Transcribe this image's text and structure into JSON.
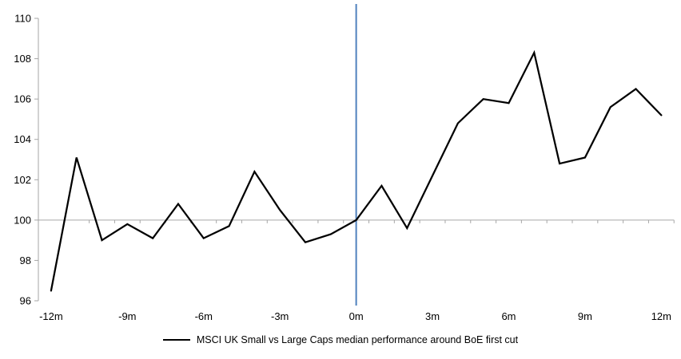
{
  "chart_data": {
    "type": "line",
    "title": "",
    "xlabel": "",
    "ylabel": "",
    "x": [
      -12,
      -11,
      -10,
      -9,
      -8,
      -7,
      -6,
      -5,
      -4,
      -3,
      -2,
      -1,
      0,
      1,
      2,
      3,
      4,
      5,
      6,
      7,
      8,
      9,
      10,
      11,
      12
    ],
    "x_ticks": [
      -12,
      -9,
      -6,
      -3,
      0,
      3,
      6,
      9,
      12
    ],
    "x_tick_labels": [
      "-12m",
      "-9m",
      "-6m",
      "-3m",
      "0m",
      "3m",
      "6m",
      "9m",
      "12m"
    ],
    "series": [
      {
        "name": "MSCI UK Small vs Large Caps median performance around BoE first cut",
        "color": "#000000",
        "values": [
          96.5,
          103.1,
          99.0,
          99.8,
          99.1,
          100.8,
          99.1,
          99.7,
          102.4,
          100.5,
          98.9,
          99.3,
          100.0,
          101.7,
          99.6,
          102.2,
          104.8,
          106.0,
          105.8,
          108.3,
          102.8,
          103.1,
          105.6,
          106.5,
          105.2
        ]
      }
    ],
    "ylim": [
      96,
      110
    ],
    "y_ticks": [
      96,
      98,
      100,
      102,
      104,
      106,
      108,
      110
    ],
    "baseline": 100,
    "event_line": {
      "x": 0,
      "color": "#4f81bd"
    },
    "axis_color": "#a6a6a6",
    "grid": "baseline-only",
    "legend_position": "bottom"
  },
  "legend": {
    "label": "MSCI UK Small vs Large Caps median performance around BoE first cut",
    "swatch_color": "#000000"
  }
}
